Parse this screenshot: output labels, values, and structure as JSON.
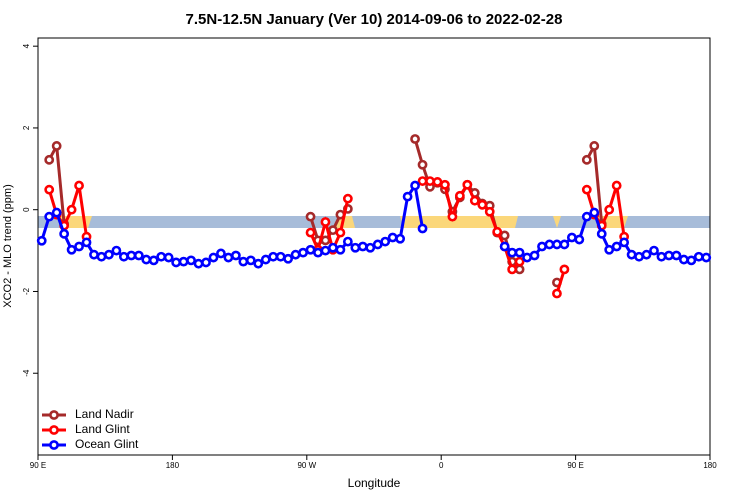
{
  "chart_data": {
    "type": "line",
    "title": "7.5N-12.5N January (Ver 10)   2014-09-06 to 2022-02-28",
    "xlabel": "Longitude",
    "ylabel": "XCO2 - MLO trend (ppm)",
    "xlim": [
      90,
      540
    ],
    "ylim": [
      -6,
      4.2
    ],
    "xticks": [
      {
        "value": 90,
        "label": "90 E"
      },
      {
        "value": 180,
        "label": "180"
      },
      {
        "value": 270,
        "label": "90 W"
      },
      {
        "value": 360,
        "label": "0"
      },
      {
        "value": 450,
        "label": "90 E"
      },
      {
        "value": 540,
        "label": "180"
      }
    ],
    "yticks": [
      -4,
      -2,
      0,
      2,
      4
    ],
    "legend": "bottom-left",
    "x": [
      92.5,
      97.5,
      102.5,
      107.5,
      112.5,
      117.5,
      122.5,
      127.5,
      132.5,
      137.5,
      142.5,
      147.5,
      152.5,
      157.5,
      162.5,
      167.5,
      172.5,
      177.5,
      182.5,
      187.5,
      192.5,
      197.5,
      202.5,
      207.5,
      212.5,
      217.5,
      222.5,
      227.5,
      232.5,
      237.5,
      242.5,
      247.5,
      252.5,
      257.5,
      262.5,
      267.5,
      272.5,
      277.5,
      282.5,
      287.5,
      292.5,
      297.5,
      302.5,
      307.5,
      312.5,
      317.5,
      322.5,
      327.5,
      332.5,
      337.5,
      342.5,
      347.5,
      352.5,
      357.5,
      362.5,
      367.5,
      372.5,
      377.5,
      382.5,
      387.5,
      392.5,
      397.5,
      402.5,
      407.5,
      412.5,
      417.5,
      422.5,
      427.5,
      432.5,
      437.5,
      442.5,
      447.5,
      452.5,
      457.5,
      462.5,
      467.5,
      472.5,
      477.5,
      482.5,
      487.5,
      492.5,
      497.5,
      502.5,
      507.5,
      512.5,
      517.5,
      522.5,
      527.5,
      532.5,
      537.5
    ],
    "series": [
      {
        "name": "Land Nadir",
        "color": "#a52a2a",
        "values": [
          null,
          1.22,
          1.56,
          -0.35,
          null,
          null,
          null,
          null,
          null,
          null,
          null,
          null,
          null,
          null,
          null,
          null,
          null,
          null,
          null,
          null,
          null,
          null,
          null,
          null,
          null,
          null,
          null,
          null,
          null,
          null,
          null,
          null,
          null,
          null,
          null,
          null,
          -0.17,
          -0.75,
          -0.75,
          -0.5,
          -0.12,
          0.02,
          null,
          null,
          null,
          null,
          null,
          null,
          null,
          null,
          1.73,
          1.1,
          0.56,
          0.66,
          0.5,
          -0.05,
          0.3,
          0.61,
          0.41,
          0.15,
          0.1,
          -0.56,
          -0.63,
          -1.27,
          -1.46,
          null,
          null,
          null,
          null,
          -1.78,
          null,
          null,
          null,
          1.22,
          1.56,
          -0.35,
          null,
          null,
          null,
          null,
          null,
          null,
          null,
          null,
          null,
          null,
          null,
          null,
          null,
          null
        ]
      },
      {
        "name": "Land Glint",
        "color": "#ff0000",
        "values": [
          null,
          0.49,
          -0.12,
          -0.39,
          0.0,
          0.59,
          -0.66,
          null,
          null,
          null,
          null,
          null,
          null,
          null,
          null,
          null,
          null,
          null,
          null,
          null,
          null,
          null,
          null,
          null,
          null,
          null,
          null,
          null,
          null,
          null,
          null,
          null,
          null,
          null,
          null,
          null,
          -0.56,
          -0.98,
          -0.3,
          -0.98,
          -0.56,
          0.27,
          null,
          null,
          null,
          null,
          null,
          null,
          null,
          null,
          null,
          0.7,
          0.7,
          0.68,
          0.61,
          -0.17,
          0.34,
          0.61,
          0.22,
          0.12,
          -0.05,
          -0.54,
          -0.9,
          -1.46,
          -1.27,
          null,
          null,
          null,
          null,
          -2.05,
          -1.46,
          null,
          null,
          0.49,
          -0.12,
          -0.39,
          0.0,
          0.59,
          -0.66,
          null,
          null,
          null,
          null,
          null,
          null,
          null,
          null,
          null,
          null,
          null
        ]
      },
      {
        "name": "Ocean Glint",
        "color": "#0000ff",
        "values": [
          -0.76,
          -0.17,
          -0.07,
          -0.59,
          -0.98,
          -0.9,
          -0.8,
          -1.1,
          -1.15,
          -1.1,
          -1.0,
          -1.15,
          -1.12,
          -1.12,
          -1.22,
          -1.24,
          -1.15,
          -1.17,
          -1.29,
          -1.27,
          -1.24,
          -1.32,
          -1.29,
          -1.17,
          -1.07,
          -1.17,
          -1.12,
          -1.27,
          -1.24,
          -1.32,
          -1.22,
          -1.15,
          -1.15,
          -1.2,
          -1.1,
          -1.05,
          -0.98,
          -1.05,
          -1.0,
          -0.93,
          -0.98,
          -0.78,
          -0.93,
          -0.9,
          -0.93,
          -0.85,
          -0.78,
          -0.68,
          -0.71,
          0.32,
          0.59,
          -0.46,
          null,
          null,
          null,
          null,
          null,
          null,
          null,
          null,
          null,
          null,
          -0.9,
          -1.05,
          -1.05,
          -1.17,
          -1.12,
          -0.9,
          -0.85,
          -0.85,
          -0.85,
          -0.68,
          -0.73,
          -0.17,
          -0.07,
          -0.59,
          -0.98,
          -0.9,
          -0.8,
          -1.1,
          -1.15,
          -1.1,
          -1.0,
          -1.15,
          -1.12,
          -1.12,
          -1.22,
          -1.24,
          -1.15,
          -1.17
        ]
      }
    ]
  }
}
